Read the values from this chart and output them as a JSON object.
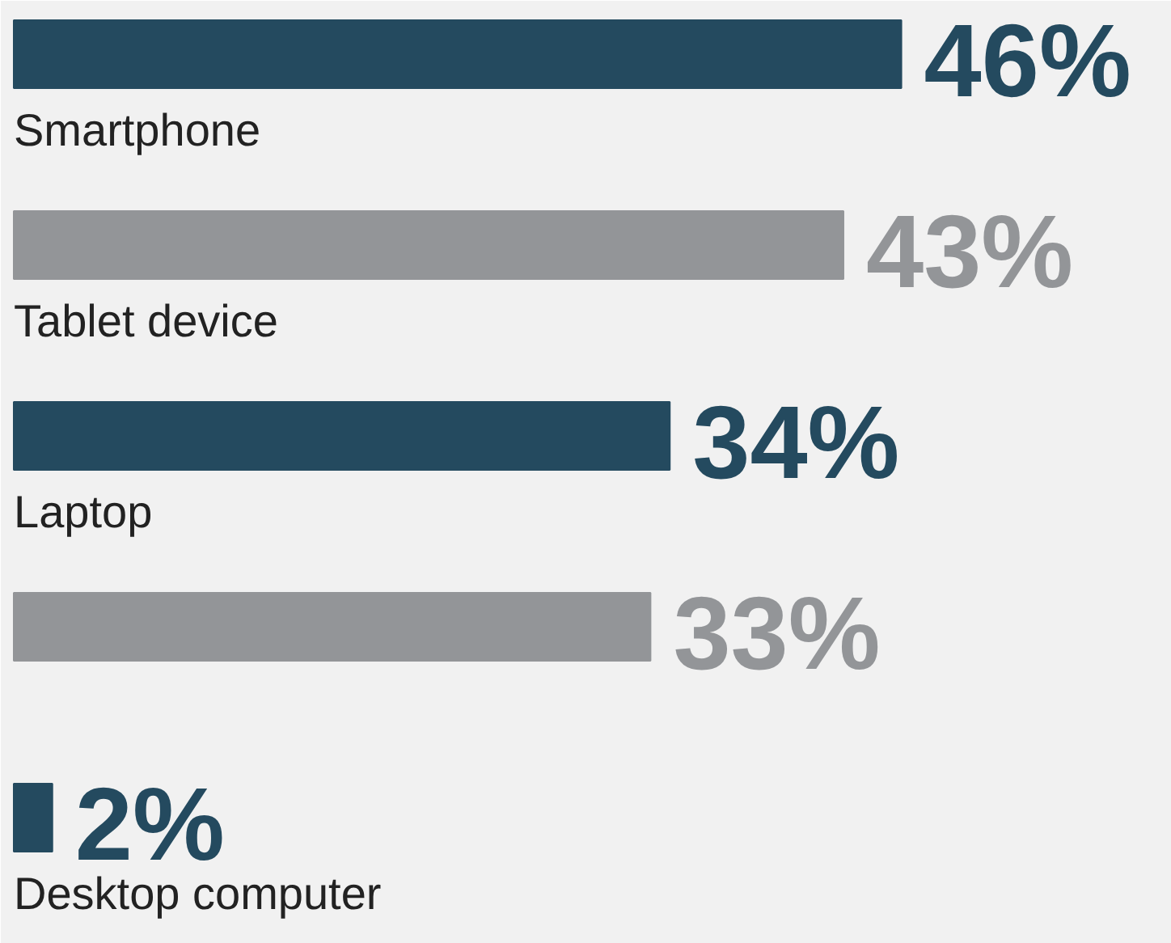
{
  "chart_data": {
    "type": "bar",
    "orientation": "horizontal",
    "categories": [
      "Smartphone",
      "Tablet device",
      "Laptop",
      null,
      "Desktop computer"
    ],
    "values": [
      46,
      43,
      34,
      33,
      2
    ],
    "colors": [
      "#244a5f",
      "#939598",
      "#244a5f",
      "#939598",
      "#244a5f"
    ],
    "data_labels": true,
    "value_labels": [
      "46%",
      "43%",
      "34%",
      "33%",
      "2%"
    ]
  }
}
